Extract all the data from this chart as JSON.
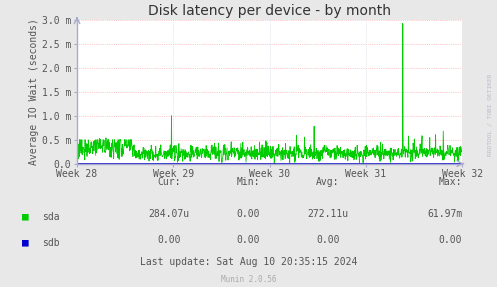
{
  "title": "Disk latency per device - by month",
  "ylabel": "Average IO Wait (seconds)",
  "background_color": "#e8e8e8",
  "plot_bg_color": "#ffffff",
  "ylim": [
    0.0,
    0.003
  ],
  "yticks": [
    0.0,
    0.0005,
    0.001,
    0.0015,
    0.002,
    0.0025,
    0.003
  ],
  "ytick_labels": [
    "0.0",
    "0.5 m",
    "1.0 m",
    "1.5 m",
    "2.0 m",
    "2.5 m",
    "3.0 m"
  ],
  "week_labels": [
    "Week 28",
    "Week 29",
    "Week 30",
    "Week 31",
    "Week 32"
  ],
  "line_color_sda": "#00cc00",
  "line_color_sdb": "#0000cc",
  "spike_near_week32": 0.00293,
  "spike_near_week29": 0.001,
  "spike_near_week31": 0.00078,
  "base_mean": 0.00022,
  "base_std": 8e-05,
  "right_label": "RRDTOOL / TOBI OETIKER",
  "table_cur_sda": "284.07u",
  "table_min_sda": "0.00",
  "table_avg_sda": "272.11u",
  "table_max_sda": "61.97m",
  "table_cur_sdb": "0.00",
  "table_min_sdb": "0.00",
  "table_avg_sdb": "0.00",
  "table_max_sdb": "0.00",
  "last_update": "Last update: Sat Aug 10 20:35:15 2024",
  "munin_version": "Munin 2.0.56",
  "title_fontsize": 10,
  "axis_fontsize": 7,
  "label_fontsize": 7,
  "table_fontsize": 7
}
